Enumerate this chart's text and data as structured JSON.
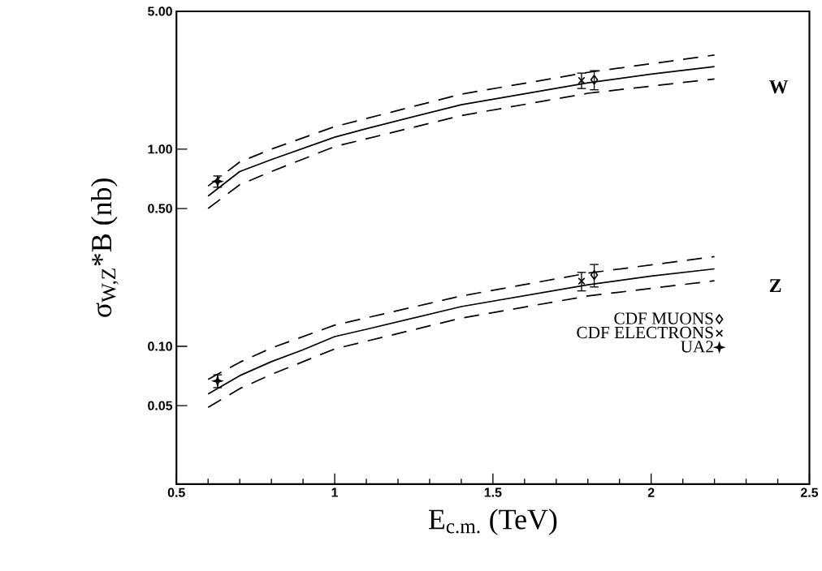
{
  "chart_data": {
    "type": "line",
    "xlabel": "E$_{c.m.}$   (TeV)",
    "ylabel": "σ$_{W,Z}$*B   (nb)",
    "log": "y",
    "xlim": [
      0.5,
      2.5
    ],
    "ylim": [
      0.02,
      5
    ],
    "xticks": [
      0.5,
      1,
      1.5,
      2,
      2.5
    ],
    "yticks": [
      {
        "value": 0.05,
        "label": "0.05"
      },
      {
        "value": 0.1,
        "label": "0.10"
      },
      {
        "value": 0.5,
        "label": "0.50"
      },
      {
        "value": 1,
        "label": "1.00"
      },
      {
        "value": 5,
        "label": "5.00"
      }
    ],
    "legend": "bottom right",
    "series": [
      {
        "color": "#000000",
        "line_style": "solid",
        "marker": "none",
        "x": [
          0.6,
          0.7,
          0.8,
          1.0,
          1.1,
          1.4,
          1.8,
          2.0,
          2.2
        ],
        "values": [
          0.578,
          0.77,
          0.885,
          1.15,
          1.27,
          1.68,
          2.17,
          2.4,
          2.62
        ]
      },
      {
        "color": "#000000",
        "line_style": "dashed",
        "marker": "none",
        "x": [
          0.6,
          0.7,
          0.8,
          1.0,
          1.4,
          1.8,
          2.2
        ],
        "values": [
          0.65,
          0.86,
          1.0,
          1.3,
          1.9,
          2.45,
          3.0
        ]
      },
      {
        "color": "#000000",
        "line_style": "dashed",
        "marker": "none",
        "x": [
          0.6,
          0.7,
          0.8,
          1.0,
          1.4,
          1.8,
          2.2
        ],
        "values": [
          0.5,
          0.66,
          0.77,
          1.03,
          1.48,
          1.92,
          2.27
        ]
      },
      {
        "color": "#000000",
        "line_style": "solid",
        "marker": "none",
        "x": [
          0.6,
          0.7,
          0.8,
          0.9,
          1.0,
          1.1,
          1.4,
          1.8,
          2.0,
          2.2
        ],
        "values": [
          0.0573,
          0.071,
          0.0836,
          0.096,
          0.112,
          0.122,
          0.159,
          0.205,
          0.227,
          0.247
        ]
      },
      {
        "color": "#000000",
        "line_style": "dashed",
        "marker": "none",
        "x": [
          0.6,
          0.7,
          0.8,
          1.0,
          1.4,
          1.8,
          2.2
        ],
        "values": [
          0.068,
          0.083,
          0.098,
          0.128,
          0.18,
          0.235,
          0.285
        ]
      },
      {
        "color": "#000000",
        "line_style": "dashed",
        "marker": "none",
        "x": [
          0.6,
          0.7,
          0.8,
          1.0,
          1.4,
          1.8,
          2.2
        ],
        "values": [
          0.049,
          0.061,
          0.072,
          0.097,
          0.139,
          0.18,
          0.215
        ]
      },
      {
        "type": "scatter",
        "name": "CDF MUONS",
        "color": "#000000",
        "marker": "diamond",
        "x": [
          1.82,
          1.82
        ],
        "values": [
          2.25,
          0.23
        ],
        "errors": [
          0.25,
          0.03
        ]
      },
      {
        "type": "scatter",
        "name": "CDF ELECTRONS",
        "color": "#000000",
        "marker": "cross",
        "x": [
          1.78,
          1.78
        ],
        "values": [
          2.23,
          0.214
        ],
        "errors": [
          0.2,
          0.023
        ]
      },
      {
        "type": "scatter",
        "name": "UA2",
        "color": "#000000",
        "marker": "star",
        "x": [
          0.63,
          0.63
        ],
        "values": [
          0.686,
          0.0667
        ],
        "errors": [
          0.045,
          0.005
        ]
      }
    ],
    "annotations": [
      "W",
      "Z"
    ]
  }
}
